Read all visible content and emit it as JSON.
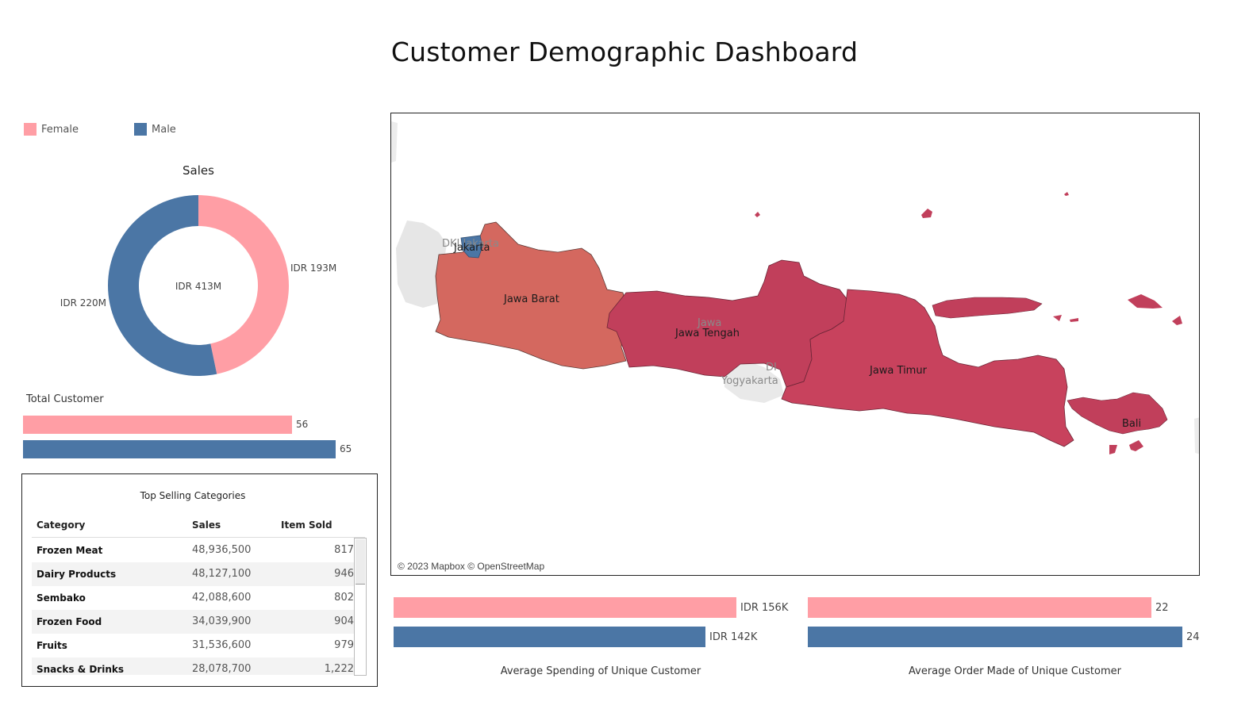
{
  "dashboard": {
    "title": "Customer Demographic Dashboard"
  },
  "colors": {
    "female": "#ff9ea5",
    "male": "#4b76a5",
    "region_high": "#c13f5b",
    "region_mid": "#d4685f",
    "region_low": "#4b76a5"
  },
  "legend": [
    {
      "label": "Female",
      "color": "#ff9ea5"
    },
    {
      "label": "Male",
      "color": "#4b76a5"
    }
  ],
  "chart_data": [
    {
      "type": "pie",
      "title": "Sales",
      "center_label": "IDR 413M",
      "slices": [
        {
          "name": "Female",
          "value": 193,
          "label": "IDR 193M",
          "color": "#ff9ea5"
        },
        {
          "name": "Male",
          "value": 220,
          "label": "IDR 220M",
          "color": "#4b76a5"
        }
      ]
    },
    {
      "type": "bar",
      "title": "Total Customer",
      "categories": [
        "Female",
        "Male"
      ],
      "values": [
        56,
        65
      ],
      "value_labels": [
        "56",
        "65"
      ]
    },
    {
      "type": "table",
      "title": "Top Selling Categories",
      "columns": [
        "Category",
        "Sales",
        "Item Sold"
      ],
      "rows": [
        [
          "Frozen Meat",
          "48,936,500",
          "817"
        ],
        [
          "Dairy Products",
          "48,127,100",
          "946"
        ],
        [
          "Sembako",
          "42,088,600",
          "802"
        ],
        [
          "Frozen Food",
          "34,039,900",
          "904"
        ],
        [
          "Fruits",
          "31,536,600",
          "979"
        ],
        [
          "Snacks & Drinks",
          "28,078,700",
          "1,222"
        ]
      ]
    },
    {
      "type": "bar",
      "title": "Average Spending of Unique Customer",
      "categories": [
        "Female",
        "Male"
      ],
      "values": [
        156,
        142
      ],
      "value_labels": [
        "IDR 156K",
        "IDR 142K"
      ]
    },
    {
      "type": "bar",
      "title": "Average Order Made of Unique Customer",
      "categories": [
        "Female",
        "Male"
      ],
      "values": [
        22,
        24
      ],
      "value_labels": [
        "22",
        "24"
      ]
    }
  ],
  "map": {
    "regions": [
      "Jakarta",
      "Jawa Barat",
      "Jawa Tengah",
      "Jawa Timur",
      "Bali"
    ],
    "other_labels": [
      "DKI Jakarta",
      "Jawa",
      "Yogyakarta",
      "DI"
    ],
    "credit": "© 2023 Mapbox © OpenStreetMap"
  }
}
